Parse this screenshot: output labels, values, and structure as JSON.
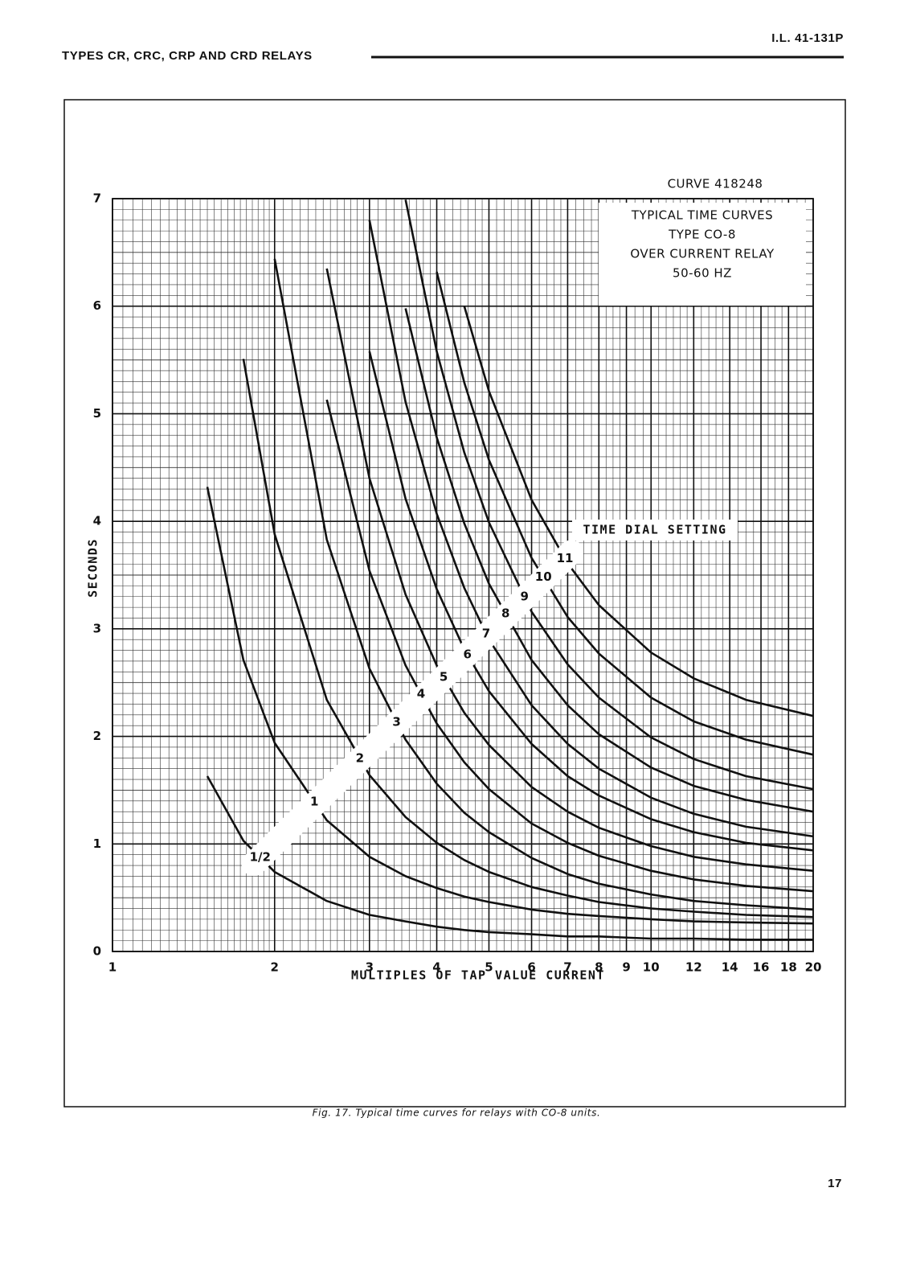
{
  "header": {
    "title": "TYPES CR, CRC, CRP AND CRD RELAYS",
    "document_id": "I.L. 41-131P"
  },
  "chart_data": {
    "type": "line",
    "curve_id": "CURVE 418248",
    "title_lines": [
      "TYPICAL TIME CURVES",
      "TYPE CO-8",
      "OVER CURRENT RELAY",
      "50-60 HZ"
    ],
    "annotation": "TIME DIAL SETTING",
    "x_label": "MULTIPLES OF TAP VALUE CURRENT",
    "y_label": "SECONDS",
    "x_scale": "log",
    "grid": true,
    "minor_grid": true,
    "xlim": [
      1,
      20
    ],
    "ylim": [
      0,
      7
    ],
    "xticks": [
      1,
      2,
      3,
      4,
      5,
      6,
      7,
      8,
      9,
      10,
      12,
      14,
      16,
      18,
      20
    ],
    "yticks": [
      0,
      1,
      2,
      3,
      4,
      5,
      6,
      7
    ],
    "x": [
      1.5,
      1.75,
      2,
      2.5,
      3,
      3.5,
      4,
      4.5,
      5,
      6,
      7,
      8,
      10,
      12,
      15,
      20
    ],
    "series": [
      {
        "name": "1/2",
        "color": "#111111",
        "values": [
          1.63,
          1.03,
          0.74,
          0.47,
          0.34,
          0.28,
          0.23,
          0.2,
          0.18,
          0.16,
          0.14,
          0.14,
          0.12,
          0.12,
          0.11,
          0.11
        ]
      },
      {
        "name": "1",
        "color": "#111111",
        "values": [
          4.32,
          2.71,
          1.94,
          1.22,
          0.88,
          0.7,
          0.59,
          0.51,
          0.46,
          0.39,
          0.35,
          0.33,
          0.3,
          0.28,
          0.27,
          0.26
        ]
      },
      {
        "name": "2",
        "color": "#111111",
        "values": [
          null,
          5.51,
          3.88,
          2.34,
          1.64,
          1.25,
          1.01,
          0.85,
          0.74,
          0.6,
          0.52,
          0.46,
          0.4,
          0.37,
          0.34,
          0.32
        ]
      },
      {
        "name": "3",
        "color": "#111111",
        "values": [
          null,
          null,
          6.44,
          3.83,
          2.63,
          1.97,
          1.56,
          1.29,
          1.11,
          0.87,
          0.72,
          0.63,
          0.53,
          0.47,
          0.43,
          0.39
        ]
      },
      {
        "name": "4",
        "color": "#111111",
        "values": [
          null,
          null,
          null,
          5.13,
          3.54,
          2.66,
          2.12,
          1.76,
          1.51,
          1.19,
          1.01,
          0.89,
          0.75,
          0.67,
          0.61,
          0.56
        ]
      },
      {
        "name": "5",
        "color": "#111111",
        "values": [
          null,
          null,
          null,
          6.35,
          4.4,
          3.32,
          2.66,
          2.22,
          1.92,
          1.53,
          1.3,
          1.15,
          0.98,
          0.88,
          0.81,
          0.75
        ]
      },
      {
        "name": "6",
        "color": "#111111",
        "values": [
          null,
          null,
          null,
          null,
          5.58,
          4.21,
          3.37,
          2.81,
          2.42,
          1.93,
          1.63,
          1.45,
          1.23,
          1.11,
          1.01,
          0.94
        ]
      },
      {
        "name": "7",
        "color": "#111111",
        "values": [
          null,
          null,
          null,
          null,
          6.8,
          5.11,
          4.07,
          3.38,
          2.9,
          2.29,
          1.93,
          1.7,
          1.43,
          1.28,
          1.16,
          1.07
        ]
      },
      {
        "name": "8",
        "color": "#111111",
        "values": [
          null,
          null,
          null,
          null,
          null,
          5.98,
          4.78,
          3.98,
          3.42,
          2.71,
          2.29,
          2.02,
          1.71,
          1.54,
          1.41,
          1.3
        ]
      },
      {
        "name": "9",
        "color": "#111111",
        "values": [
          null,
          null,
          null,
          null,
          null,
          6.99,
          5.58,
          4.64,
          3.99,
          3.16,
          2.67,
          2.36,
          1.99,
          1.79,
          1.63,
          1.51
        ]
      },
      {
        "name": "10",
        "color": "#111111",
        "values": [
          null,
          null,
          null,
          null,
          null,
          null,
          6.32,
          5.29,
          4.57,
          3.66,
          3.11,
          2.77,
          2.36,
          2.14,
          1.97,
          1.83
        ]
      },
      {
        "name": "11",
        "color": "#111111",
        "values": [
          null,
          null,
          null,
          null,
          null,
          null,
          null,
          6.0,
          5.21,
          4.2,
          3.61,
          3.22,
          2.78,
          2.54,
          2.34,
          2.19
        ]
      }
    ]
  },
  "caption": "Fig. 17. Typical time curves for relays with CO-8 units.",
  "page_number": "17"
}
